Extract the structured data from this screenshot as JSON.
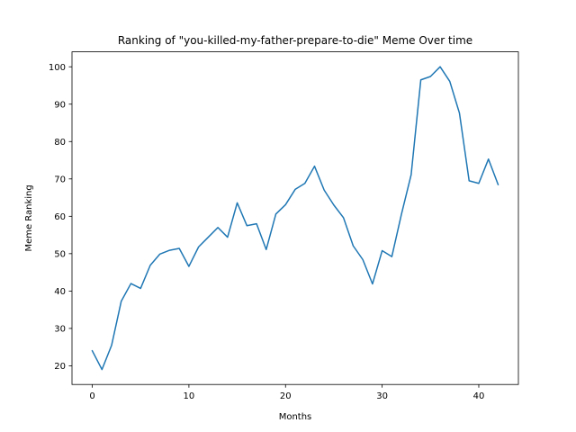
{
  "chart_data": {
    "type": "line",
    "title": "Ranking of \"you-killed-my-father-prepare-to-die\" Meme Over time",
    "xlabel": "Months",
    "ylabel": "Meme Ranking",
    "xlim": [
      -2.1,
      44.1
    ],
    "ylim": [
      15.0,
      104.0
    ],
    "xticks": [
      0,
      10,
      20,
      30,
      40
    ],
    "yticks": [
      20,
      30,
      40,
      50,
      60,
      70,
      80,
      90,
      100
    ],
    "grid": false,
    "series": [
      {
        "name": "",
        "color": "#1f77b4",
        "x": [
          0,
          1,
          2,
          3,
          4,
          5,
          6,
          7,
          8,
          9,
          10,
          11,
          12,
          13,
          14,
          15,
          16,
          17,
          18,
          19,
          20,
          21,
          22,
          23,
          24,
          25,
          26,
          27,
          28,
          29,
          30,
          31,
          32,
          33,
          34,
          35,
          36,
          37,
          38,
          39,
          40,
          41,
          42
        ],
        "y": [
          24.0,
          19.0,
          25.5,
          37.3,
          42.0,
          40.7,
          46.9,
          49.9,
          50.9,
          51.4,
          46.6,
          51.8,
          54.4,
          57.0,
          54.4,
          63.6,
          57.5,
          58.0,
          51.1,
          60.6,
          63.1,
          67.2,
          68.8,
          73.4,
          67.0,
          63.0,
          59.6,
          52.1,
          48.4,
          41.9,
          50.8,
          49.2,
          60.6,
          71.1,
          96.5,
          97.4,
          100.0,
          96.1,
          87.6,
          69.5,
          68.8,
          75.3,
          68.5
        ]
      }
    ]
  }
}
